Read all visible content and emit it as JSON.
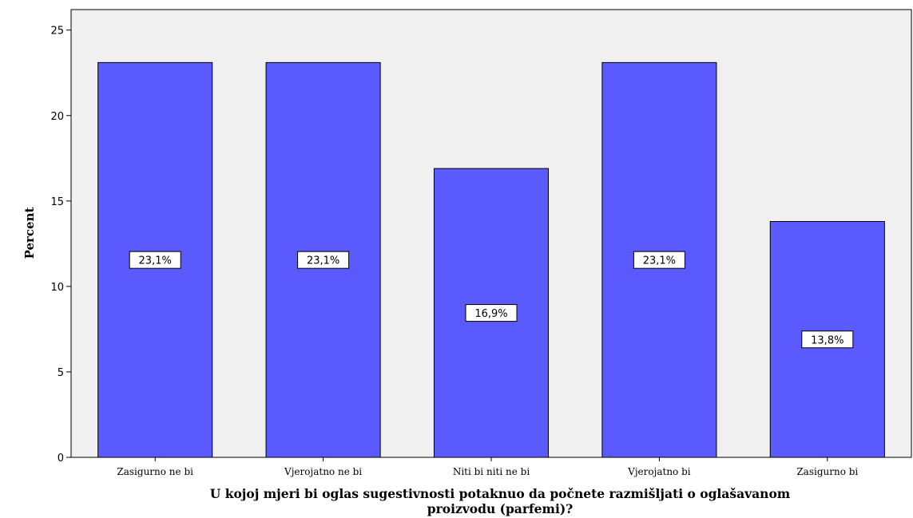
{
  "chart_data": {
    "type": "bar",
    "categories": [
      "Zasigurno ne bi",
      "Vjerojatno ne bi",
      "Niti bi niti ne bi",
      "Vjerojatno bi",
      "Zasigurno bi"
    ],
    "values": [
      23.1,
      23.1,
      16.9,
      23.1,
      13.8
    ],
    "data_labels": [
      "23,1%",
      "23,1%",
      "16,9%",
      "23,1%",
      "13,8%"
    ],
    "ylabel": "Percent",
    "xlabel_lines": [
      "U kojoj mjeri bi oglas sugestivnosti potaknuo da počnete razmišljati o oglašavanom",
      "proizvodu (parfemi)?"
    ],
    "yticks": [
      "0",
      "5",
      "10",
      "15",
      "20",
      "25"
    ],
    "ylim": [
      0,
      26.2
    ],
    "grid": false,
    "colors": {
      "bar": "#5a5aff",
      "plot_bg": "#f0f0f0",
      "label_box": "#ffffff"
    }
  }
}
